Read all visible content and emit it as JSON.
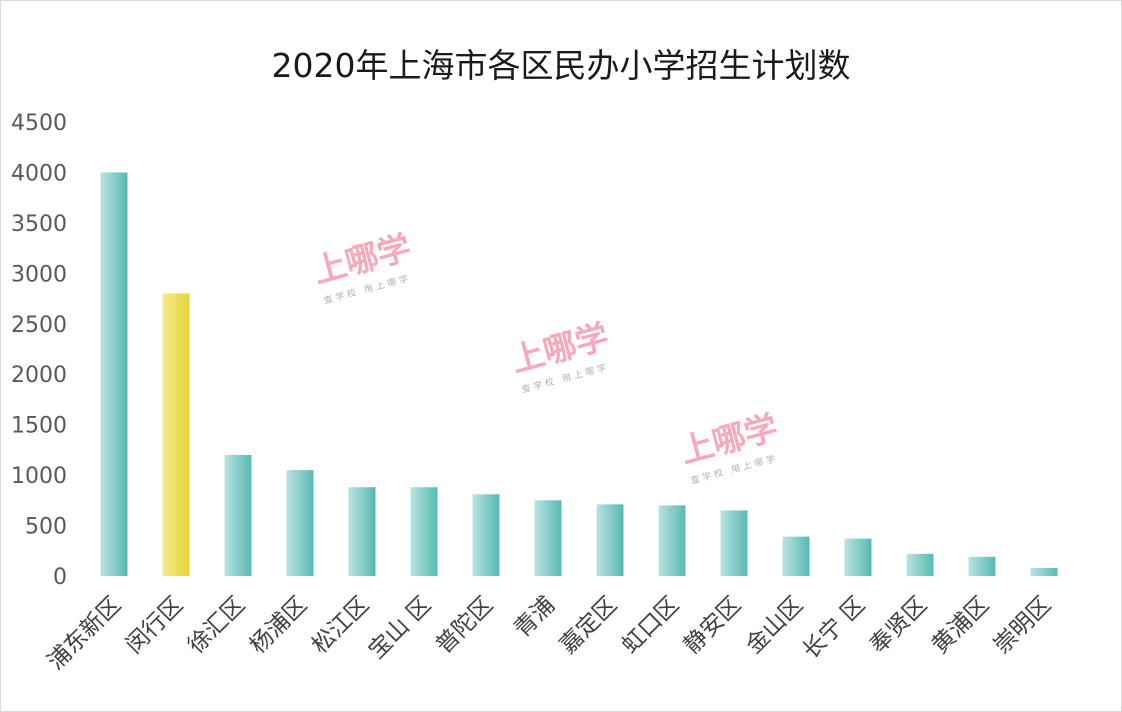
{
  "chart_data": {
    "type": "bar",
    "title": "2020年上海市各区民办小学招生计划数",
    "xlabel": "",
    "ylabel": "",
    "ylim": [
      0,
      4500
    ],
    "yticks": [
      0,
      500,
      1000,
      1500,
      2000,
      2500,
      3000,
      3500,
      4000,
      4500
    ],
    "grid": false,
    "categories": [
      "浦东新区",
      "闵行区",
      "徐汇区",
      "杨浦区",
      "松江区",
      "宝山 区",
      "普陀区",
      "青浦",
      "嘉定区",
      "虹口区",
      "静安区",
      "金山区",
      "长宁 区",
      "奉贤区",
      "黄浦区",
      "崇明区"
    ],
    "values": [
      4000,
      2800,
      1200,
      1050,
      880,
      880,
      810,
      750,
      710,
      700,
      650,
      390,
      370,
      220,
      190,
      80
    ],
    "colors": {
      "default_bar": "#6fc3be",
      "highlight_bar": "#ecdf5a",
      "highlight_category": "闵行区"
    }
  },
  "watermark": {
    "brand": "上哪学",
    "tagline": "查学校  用上哪学"
  }
}
